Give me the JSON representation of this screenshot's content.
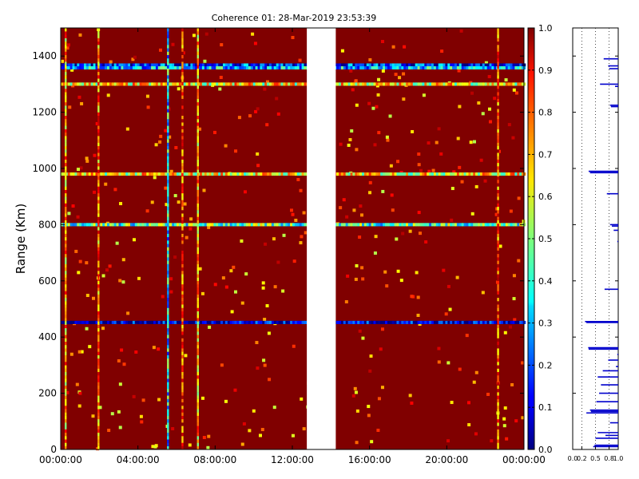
{
  "chart_data": [
    {
      "type": "heatmap",
      "title": "Coherence 01: 28-Mar-2019 23:53:39",
      "ylabel": "Range (Km)",
      "xlabel": "",
      "xlim": [
        "00:00:00",
        "24:00:00"
      ],
      "ylim": [
        0,
        1500
      ],
      "x_tick_labels": [
        "00:00:00",
        "04:00:00",
        "08:00:00",
        "12:00:00",
        "16:00:00",
        "20:00:00",
        "00:00:00"
      ],
      "y_tick_labels": [
        "0",
        "200",
        "400",
        "600",
        "800",
        "1000",
        "1200",
        "1400"
      ],
      "y_ticks": [
        0,
        200,
        400,
        600,
        800,
        1000,
        1200,
        1400
      ],
      "data_gap_hours": [
        12.75,
        14.25
      ],
      "background_value": 1.0,
      "low_coherence_range_bands": [
        {
          "range_km": 1368,
          "value": 0.15
        },
        {
          "range_km": 1358,
          "value": 0.3
        },
        {
          "range_km": 1300,
          "value": 0.62
        },
        {
          "range_km": 980,
          "value": 0.62
        },
        {
          "range_km": 800,
          "value": 0.45
        },
        {
          "range_km": 452,
          "value": 0.05
        }
      ],
      "low_coherence_time_columns": [
        {
          "hours": 0.25,
          "value": 0.7
        },
        {
          "hours": 1.95,
          "value": 0.75
        },
        {
          "hours": 5.55,
          "value": 0.35
        },
        {
          "hours": 6.3,
          "value": 0.8
        },
        {
          "hours": 7.1,
          "value": 0.68
        },
        {
          "hours": 22.65,
          "value": 0.8
        }
      ]
    },
    {
      "type": "colorbar",
      "min": 0.0,
      "max": 1.0,
      "colormap": "jet",
      "tick_labels": [
        "0.0",
        "0.1",
        "0.2",
        "0.3",
        "0.4",
        "0.5",
        "0.6",
        "0.7",
        "0.8",
        "0.9",
        "1.0"
      ]
    },
    {
      "type": "line",
      "x_tick_labels": [
        "0.0",
        "0.2",
        "0.5",
        "0.8",
        "1.0"
      ],
      "xlim": [
        0,
        1
      ],
      "ylim": [
        0,
        1500
      ],
      "line_color": "#0000cc",
      "profile": [
        {
          "range_km": 1390,
          "value": 0.68
        },
        {
          "range_km": 1365,
          "value": 0.78
        },
        {
          "range_km": 1355,
          "value": 0.8
        },
        {
          "range_km": 1300,
          "value": 0.6
        },
        {
          "range_km": 1292,
          "value": 0.93
        },
        {
          "range_km": 1225,
          "value": 0.82
        },
        {
          "range_km": 1220,
          "value": 0.84
        },
        {
          "range_km": 990,
          "value": 0.35
        },
        {
          "range_km": 985,
          "value": 0.38
        },
        {
          "range_km": 910,
          "value": 0.75
        },
        {
          "range_km": 800,
          "value": 0.82
        },
        {
          "range_km": 795,
          "value": 0.86
        },
        {
          "range_km": 780,
          "value": 0.9
        },
        {
          "range_km": 740,
          "value": 0.98
        },
        {
          "range_km": 570,
          "value": 0.7
        },
        {
          "range_km": 455,
          "value": 0.27
        },
        {
          "range_km": 452,
          "value": 0.3
        },
        {
          "range_km": 362,
          "value": 0.34
        },
        {
          "range_km": 357,
          "value": 0.35
        },
        {
          "range_km": 338,
          "value": 0.98
        },
        {
          "range_km": 318,
          "value": 0.78
        },
        {
          "range_km": 295,
          "value": 0.95
        },
        {
          "range_km": 280,
          "value": 0.66
        },
        {
          "range_km": 258,
          "value": 0.55
        },
        {
          "range_km": 230,
          "value": 0.62
        },
        {
          "range_km": 200,
          "value": 0.58
        },
        {
          "range_km": 170,
          "value": 0.52
        },
        {
          "range_km": 140,
          "value": 0.38
        },
        {
          "range_km": 135,
          "value": 0.4
        },
        {
          "range_km": 130,
          "value": 0.3
        },
        {
          "range_km": 95,
          "value": 0.82
        },
        {
          "range_km": 60,
          "value": 0.55
        },
        {
          "range_km": 50,
          "value": 0.72
        },
        {
          "range_km": 40,
          "value": 0.5
        },
        {
          "range_km": 15,
          "value": 0.48
        },
        {
          "range_km": 10,
          "value": 0.45
        }
      ]
    }
  ]
}
